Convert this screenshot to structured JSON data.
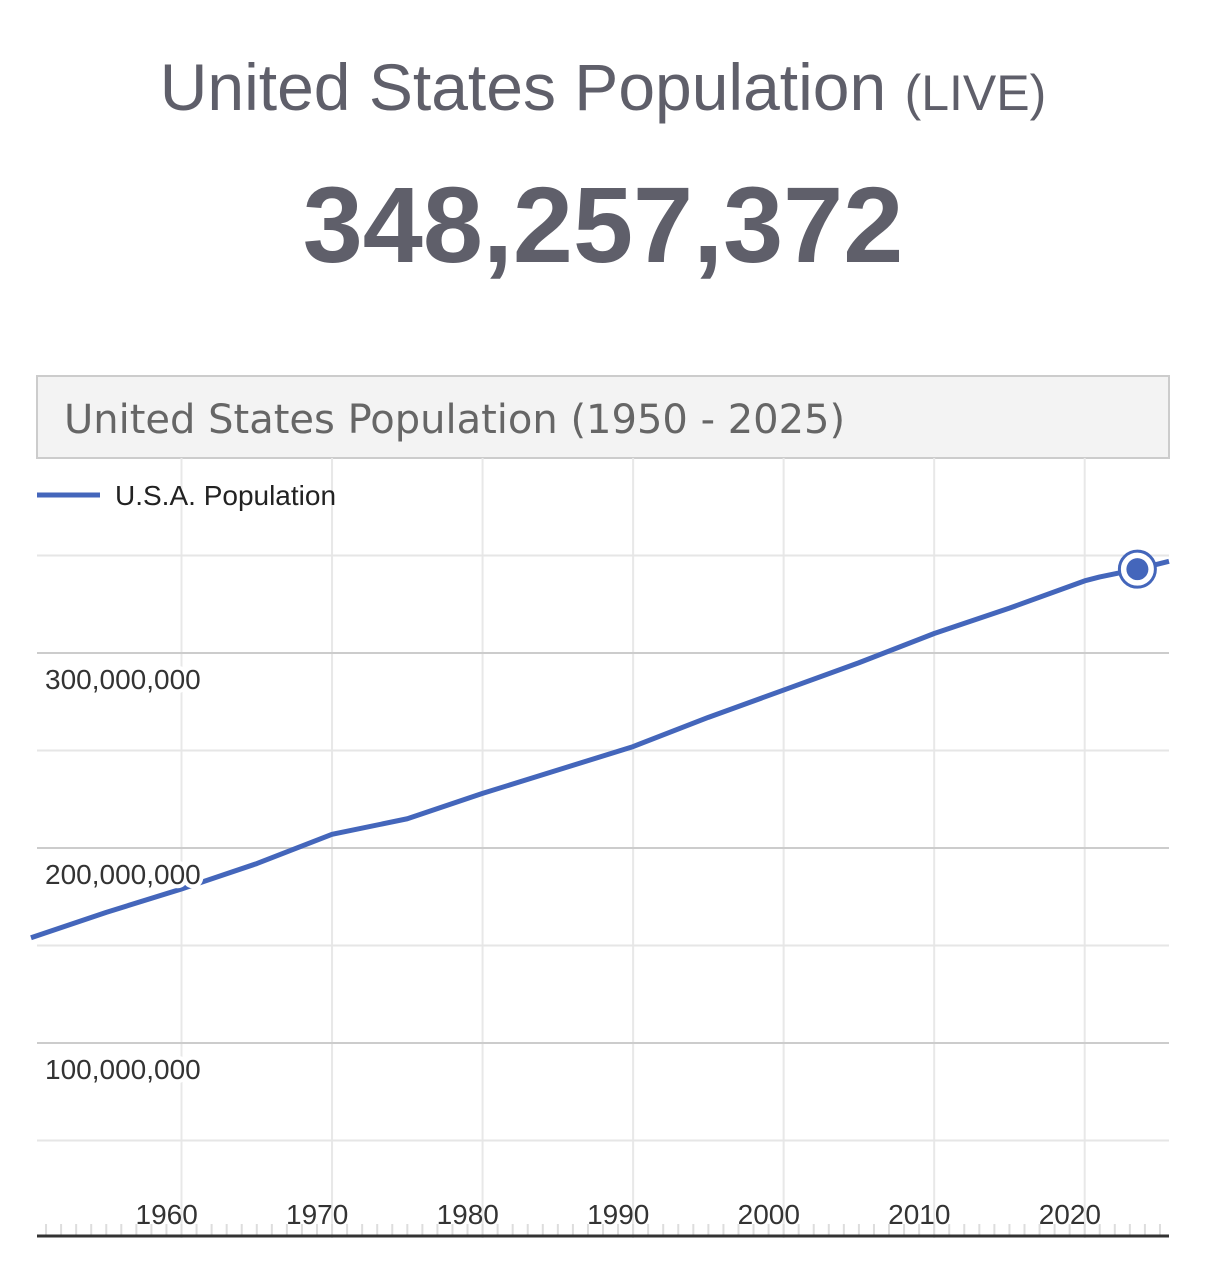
{
  "header": {
    "title": "United States Population",
    "badge": "(LIVE)",
    "counter": "348,257,372"
  },
  "chart_data": {
    "type": "line",
    "title": "United States Population (1950 - 2025)",
    "x": [
      1950,
      1955,
      1960,
      1965,
      1970,
      1975,
      1980,
      1985,
      1990,
      1995,
      2000,
      2005,
      2010,
      2015,
      2020,
      2021,
      2023.5,
      2025.6
    ],
    "series": [
      {
        "name": "U.S.A. Population",
        "color": "#4466bb",
        "values": [
          154000000,
          167000000,
          179000000,
          192000000,
          207000000,
          215000000,
          228000000,
          240000000,
          252000000,
          267000000,
          281000000,
          295000000,
          310000000,
          323000000,
          337000000,
          339000000,
          343000000,
          347000000
        ]
      }
    ],
    "xlim": [
      1950.4,
      2025.6
    ],
    "xticks": [
      1960,
      1970,
      1980,
      1990,
      2000,
      2010,
      2020
    ],
    "ylim": [
      0,
      400000000
    ],
    "yticks": [
      {
        "value": 100000000,
        "label": "100,000,000"
      },
      {
        "value": 200000000,
        "label": "200,000,000"
      },
      {
        "value": 300000000,
        "label": "300,000,000"
      }
    ],
    "y_minor_ticks": [
      50000000,
      150000000,
      250000000,
      350000000
    ],
    "grid": true,
    "highlight_index": 16,
    "legend": "top-left"
  }
}
